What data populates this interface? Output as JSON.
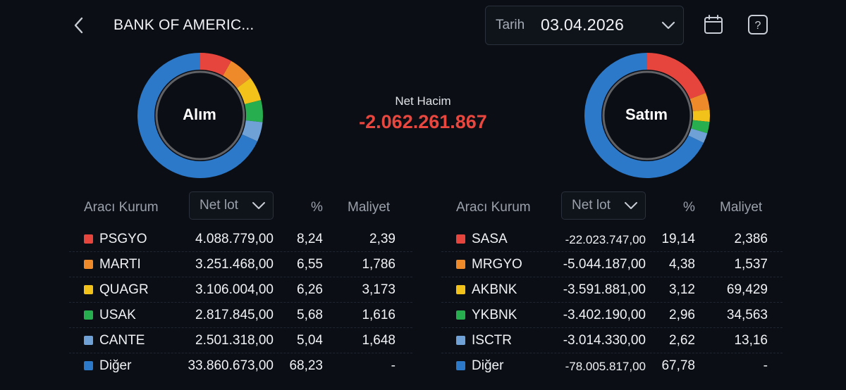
{
  "header": {
    "title": "BANK OF AMERIC...",
    "date_label": "Tarih",
    "date_value": "03.04.2026"
  },
  "summary": {
    "net_label": "Net Hacim",
    "net_value": "-2.062.261.867",
    "buy_label": "Alım",
    "sell_label": "Satım"
  },
  "colors": {
    "red": "#e5453d",
    "orange": "#ef8a2b",
    "yellow": "#f2c21b",
    "green": "#27ae4f",
    "lightblue": "#6fa0d6",
    "blue": "#2c78c9",
    "negative": "#e8473f"
  },
  "columns": {
    "broker": "Aracı Kurum",
    "netlot": "Net lot",
    "pct": "%",
    "cost": "Maliyet"
  },
  "buy": [
    {
      "name": "PSGYO",
      "lot": "4.088.779,00",
      "pct": "8,24",
      "cost": "2,39",
      "color": "#e5453d",
      "share": 8.24
    },
    {
      "name": "MARTI",
      "lot": "3.251.468,00",
      "pct": "6,55",
      "cost": "1,786",
      "color": "#ef8a2b",
      "share": 6.55
    },
    {
      "name": "QUAGR",
      "lot": "3.106.004,00",
      "pct": "6,26",
      "cost": "3,173",
      "color": "#f2c21b",
      "share": 6.26
    },
    {
      "name": "USAK",
      "lot": "2.817.845,00",
      "pct": "5,68",
      "cost": "1,616",
      "color": "#27ae4f",
      "share": 5.68
    },
    {
      "name": "CANTE",
      "lot": "2.501.318,00",
      "pct": "5,04",
      "cost": "1,648",
      "color": "#6fa0d6",
      "share": 5.04
    },
    {
      "name": "Diğer",
      "lot": "33.860.673,00",
      "pct": "68,23",
      "cost": "-",
      "color": "#2c78c9",
      "share": 68.23
    }
  ],
  "sell": [
    {
      "name": "SASA",
      "lot": "-22.023.747,00",
      "pct": "19,14",
      "cost": "2,386",
      "color": "#e5453d",
      "share": 19.14
    },
    {
      "name": "MRGYO",
      "lot": "-5.044.187,00",
      "pct": "4,38",
      "cost": "1,537",
      "color": "#ef8a2b",
      "share": 4.38
    },
    {
      "name": "AKBNK",
      "lot": "-3.591.881,00",
      "pct": "3,12",
      "cost": "69,429",
      "color": "#f2c21b",
      "share": 3.12
    },
    {
      "name": "YKBNK",
      "lot": "-3.402.190,00",
      "pct": "2,96",
      "cost": "34,563",
      "color": "#27ae4f",
      "share": 2.96
    },
    {
      "name": "ISCTR",
      "lot": "-3.014.330,00",
      "pct": "2,62",
      "cost": "13,16",
      "color": "#6fa0d6",
      "share": 2.62
    },
    {
      "name": "Diğer",
      "lot": "-78.005.817,00",
      "pct": "67,78",
      "cost": "-",
      "color": "#2c78c9",
      "share": 67.78
    }
  ]
}
